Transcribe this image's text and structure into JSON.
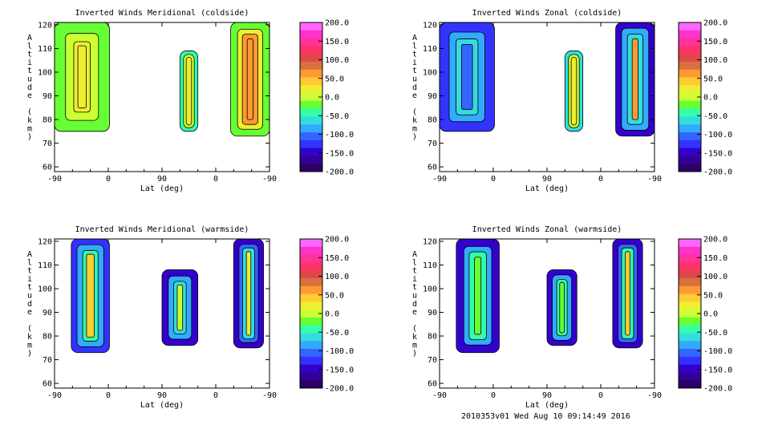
{
  "figure": {
    "footer": "2010353v01 Wed Aug 10 09:14:49 2016"
  },
  "colorbar": {
    "ticks": [
      "200.0",
      "150.0",
      "100.0",
      "50.0",
      "0.0",
      "-50.0",
      "-100.0",
      "-150.0",
      "-200.0"
    ],
    "colors": [
      "#ff66ff",
      "#ff33cc",
      "#ff3399",
      "#ff3366",
      "#e04848",
      "#d87040",
      "#ff9933",
      "#ffcc33",
      "#eeee33",
      "#ccff33",
      "#66ff33",
      "#33ffaa",
      "#33dddd",
      "#33aaff",
      "#3366ff",
      "#3333ff",
      "#3300cc",
      "#330099",
      "#2a0066"
    ]
  },
  "chart_data": [
    {
      "type": "heatmap",
      "title": "Inverted Winds Meridional (coldside)",
      "xlabel": "Lat (deg)",
      "ylabel": "Altitude (km)",
      "xticks": [
        "-90",
        "0",
        "90",
        "0",
        "-90"
      ],
      "yticks": [
        "120",
        "110",
        "100",
        "90",
        "80",
        "70",
        "60"
      ],
      "ylim": [
        58,
        121
      ],
      "colorbar_range": [
        -200,
        200
      ],
      "cells": [
        {
          "x": [
            -90,
            2
          ],
          "y": [
            75,
            121
          ],
          "value": 20,
          "rings": [
            [
              0,
              -30
            ],
            [
              0.4,
              0
            ],
            [
              0.7,
              25
            ],
            [
              0.85,
              15
            ]
          ]
        },
        {
          "x": [
            120,
            150
          ],
          "y": [
            75,
            109
          ],
          "value": 15,
          "rings": [
            [
              0,
              -40
            ],
            [
              0.4,
              0
            ],
            [
              0.7,
              30
            ]
          ]
        },
        {
          "x": [
            205,
            270
          ],
          "y": [
            73,
            121
          ],
          "value": 60,
          "rings": [
            [
              0,
              -20
            ],
            [
              0.35,
              20
            ],
            [
              0.6,
              55
            ],
            [
              0.85,
              65
            ]
          ]
        }
      ]
    },
    {
      "type": "heatmap",
      "title": "Inverted Winds Zonal (coldside)",
      "xlabel": "Lat (deg)",
      "ylabel": "Altitude (km)",
      "xticks": [
        "-90",
        "0",
        "90",
        "0",
        "-90"
      ],
      "yticks": [
        "120",
        "110",
        "100",
        "90",
        "80",
        "70",
        "60"
      ],
      "ylim": [
        58,
        121
      ],
      "colorbar_range": [
        -200,
        200
      ],
      "cells": [
        {
          "x": [
            -90,
            2
          ],
          "y": [
            75,
            121
          ],
          "value": -100,
          "rings": [
            [
              0,
              -130
            ],
            [
              0.35,
              -90
            ],
            [
              0.6,
              -60
            ],
            [
              0.8,
              -100
            ]
          ]
        },
        {
          "x": [
            120,
            150
          ],
          "y": [
            75,
            109
          ],
          "value": 10,
          "rings": [
            [
              0,
              -60
            ],
            [
              0.4,
              -10
            ],
            [
              0.7,
              25
            ]
          ]
        },
        {
          "x": [
            205,
            270
          ],
          "y": [
            73,
            121
          ],
          "value": -70,
          "rings": [
            [
              0,
              -140
            ],
            [
              0.3,
              -90
            ],
            [
              0.6,
              -60
            ],
            [
              0.85,
              60
            ]
          ]
        }
      ]
    },
    {
      "type": "heatmap",
      "title": "Inverted Winds Meridional (warmside)",
      "xlabel": "Lat (deg)",
      "ylabel": "Altitude (km)",
      "xticks": [
        "-90",
        "0",
        "90",
        "0",
        "-90"
      ],
      "yticks": [
        "120",
        "110",
        "100",
        "90",
        "80",
        "70",
        "60"
      ],
      "ylim": [
        58,
        121
      ],
      "colorbar_range": [
        -200,
        200
      ],
      "cells": [
        {
          "x": [
            -62,
            2
          ],
          "y": [
            73,
            121
          ],
          "value": -40,
          "rings": [
            [
              0,
              -130
            ],
            [
              0.3,
              -80
            ],
            [
              0.6,
              -40
            ],
            [
              0.8,
              40
            ]
          ]
        },
        {
          "x": [
            90,
            150
          ],
          "y": [
            76,
            108
          ],
          "value": -60,
          "rings": [
            [
              0,
              -140
            ],
            [
              0.35,
              -90
            ],
            [
              0.65,
              -60
            ],
            [
              0.85,
              10
            ]
          ]
        },
        {
          "x": [
            210,
            260
          ],
          "y": [
            75,
            121
          ],
          "value": -80,
          "rings": [
            [
              0,
              -150
            ],
            [
              0.35,
              -110
            ],
            [
              0.6,
              -70
            ],
            [
              0.85,
              20
            ]
          ]
        }
      ]
    },
    {
      "type": "heatmap",
      "title": "Inverted Winds Zonal (warmside)",
      "xlabel": "Lat (deg)",
      "ylabel": "Altitude (km)",
      "xticks": [
        "-90",
        "0",
        "90",
        "0",
        "-90"
      ],
      "yticks": [
        "120",
        "110",
        "100",
        "90",
        "80",
        "70",
        "60"
      ],
      "ylim": [
        58,
        121
      ],
      "colorbar_range": [
        -200,
        200
      ],
      "cells": [
        {
          "x": [
            -62,
            10
          ],
          "y": [
            73,
            121
          ],
          "value": -60,
          "rings": [
            [
              0,
              -140
            ],
            [
              0.35,
              -90
            ],
            [
              0.6,
              -50
            ],
            [
              0.85,
              -30
            ]
          ]
        },
        {
          "x": [
            90,
            140
          ],
          "y": [
            76,
            108
          ],
          "value": -60,
          "rings": [
            [
              0,
              -140
            ],
            [
              0.35,
              -90
            ],
            [
              0.65,
              -50
            ],
            [
              0.85,
              -20
            ]
          ]
        },
        {
          "x": [
            200,
            250
          ],
          "y": [
            75,
            121
          ],
          "value": -60,
          "rings": [
            [
              0,
              -150
            ],
            [
              0.35,
              -100
            ],
            [
              0.6,
              -40
            ],
            [
              0.85,
              40
            ]
          ]
        }
      ]
    }
  ]
}
